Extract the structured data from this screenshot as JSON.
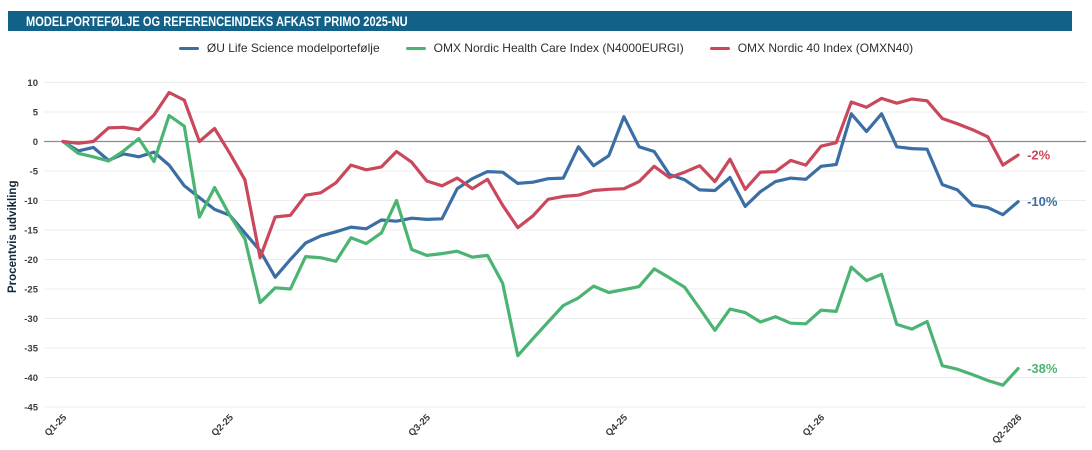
{
  "title_bar": {
    "title": "MODELPORTEFØLJE OG REFERENCEINDEKS AFKAST PRIMO 2025-NU",
    "bg_color": "#116189"
  },
  "chart_data": {
    "type": "line",
    "title": "Modelportefølje og referenceindeks afkast primo 2025-nu",
    "xlabel": "",
    "ylabel": "Procentvis udvikling",
    "ylim": [
      -45,
      10
    ],
    "ytick_step": 5,
    "yticks": [
      10,
      5,
      0,
      -5,
      -10,
      -15,
      -20,
      -25,
      -30,
      -35,
      -40,
      -45
    ],
    "grid": true,
    "zero_line_color": "#8c8c8c",
    "grid_color": "#ececec",
    "legend_position": "top",
    "n_points": 64,
    "x_ticks": [
      {
        "label": "Q1-25",
        "pos": 0
      },
      {
        "label": "Q2-25",
        "pos": 11
      },
      {
        "label": "Q3-25",
        "pos": 24
      },
      {
        "label": "Q4-25",
        "pos": 37
      },
      {
        "label": "Q1-26",
        "pos": 50
      },
      {
        "label": "Q2-2026",
        "pos": 63
      }
    ],
    "series": [
      {
        "name": "ØU Life Science modelportefølje",
        "color": "#3a6ea5",
        "end_label": "-10%",
        "values": [
          0,
          -1.6,
          -1.0,
          -3.2,
          -2.1,
          -2.6,
          -1.8,
          -4.0,
          -7.5,
          -9.5,
          -11.5,
          -12.5,
          -15.5,
          -18.5,
          -23.0,
          -20.0,
          -17.2,
          -16.0,
          -15.3,
          -14.5,
          -14.8,
          -13.3,
          -13.5,
          -13.0,
          -13.2,
          -13.1,
          -8.0,
          -6.3,
          -5.1,
          -5.2,
          -7.1,
          -6.9,
          -6.3,
          -6.2,
          -0.9,
          -4.1,
          -2.4,
          4.2,
          -0.9,
          -1.7,
          -5.6,
          -6.5,
          -8.2,
          -8.3,
          -6.1,
          -11.0,
          -8.5,
          -6.8,
          -6.2,
          -6.4,
          -4.2,
          -3.9,
          4.7,
          1.7,
          4.7,
          -0.9,
          -1.2,
          -1.3,
          -7.3,
          -8.2,
          -10.8,
          -11.2,
          -12.4,
          -10.2
        ]
      },
      {
        "name": "OMX Nordic Health Care Index (N4000EURGI)",
        "color": "#4cb473",
        "end_label": "-38%",
        "values": [
          0,
          -2.0,
          -2.6,
          -3.3,
          -1.6,
          0.5,
          -3.4,
          4.4,
          2.6,
          -12.8,
          -7.8,
          -12.5,
          -16.5,
          -27.3,
          -24.8,
          -25.0,
          -19.5,
          -19.7,
          -20.3,
          -16.3,
          -17.3,
          -15.5,
          -10.0,
          -18.3,
          -19.3,
          -19.0,
          -18.6,
          -19.6,
          -19.3,
          -24.0,
          -36.3,
          -33.4,
          -30.6,
          -27.8,
          -26.5,
          -24.5,
          -25.6,
          -25.1,
          -24.6,
          -21.6,
          -23.1,
          -24.7,
          -28.3,
          -32.0,
          -28.4,
          -29.0,
          -30.6,
          -29.7,
          -30.8,
          -30.9,
          -28.6,
          -28.8,
          -21.3,
          -23.6,
          -22.5,
          -31.0,
          -31.8,
          -30.5,
          -38.0,
          -38.6,
          -39.5,
          -40.5,
          -41.3,
          -38.5
        ]
      },
      {
        "name": "OMX Nordic 40 Index (OMXN40)",
        "color": "#c9485b",
        "end_label": "-2%",
        "values": [
          0,
          -0.3,
          0,
          2.3,
          2.4,
          2.0,
          4.5,
          8.3,
          7.0,
          0,
          2.2,
          -2.0,
          -6.5,
          -19.7,
          -12.8,
          -12.5,
          -9.1,
          -8.7,
          -7.0,
          -4.0,
          -4.8,
          -4.3,
          -1.7,
          -3.5,
          -6.7,
          -7.5,
          -6.2,
          -8.0,
          -6.4,
          -10.8,
          -14.6,
          -12.6,
          -9.8,
          -9.3,
          -9.1,
          -8.3,
          -8.1,
          -8.0,
          -6.8,
          -4.2,
          -6.1,
          -5.2,
          -4.1,
          -6.8,
          -3.0,
          -8.1,
          -5.2,
          -5.1,
          -3.2,
          -4.0,
          -0.8,
          -0.2,
          6.7,
          5.8,
          7.3,
          6.5,
          7.2,
          6.9,
          3.9,
          3.0,
          2.0,
          0.8,
          -4.0,
          -2.3
        ]
      }
    ]
  }
}
